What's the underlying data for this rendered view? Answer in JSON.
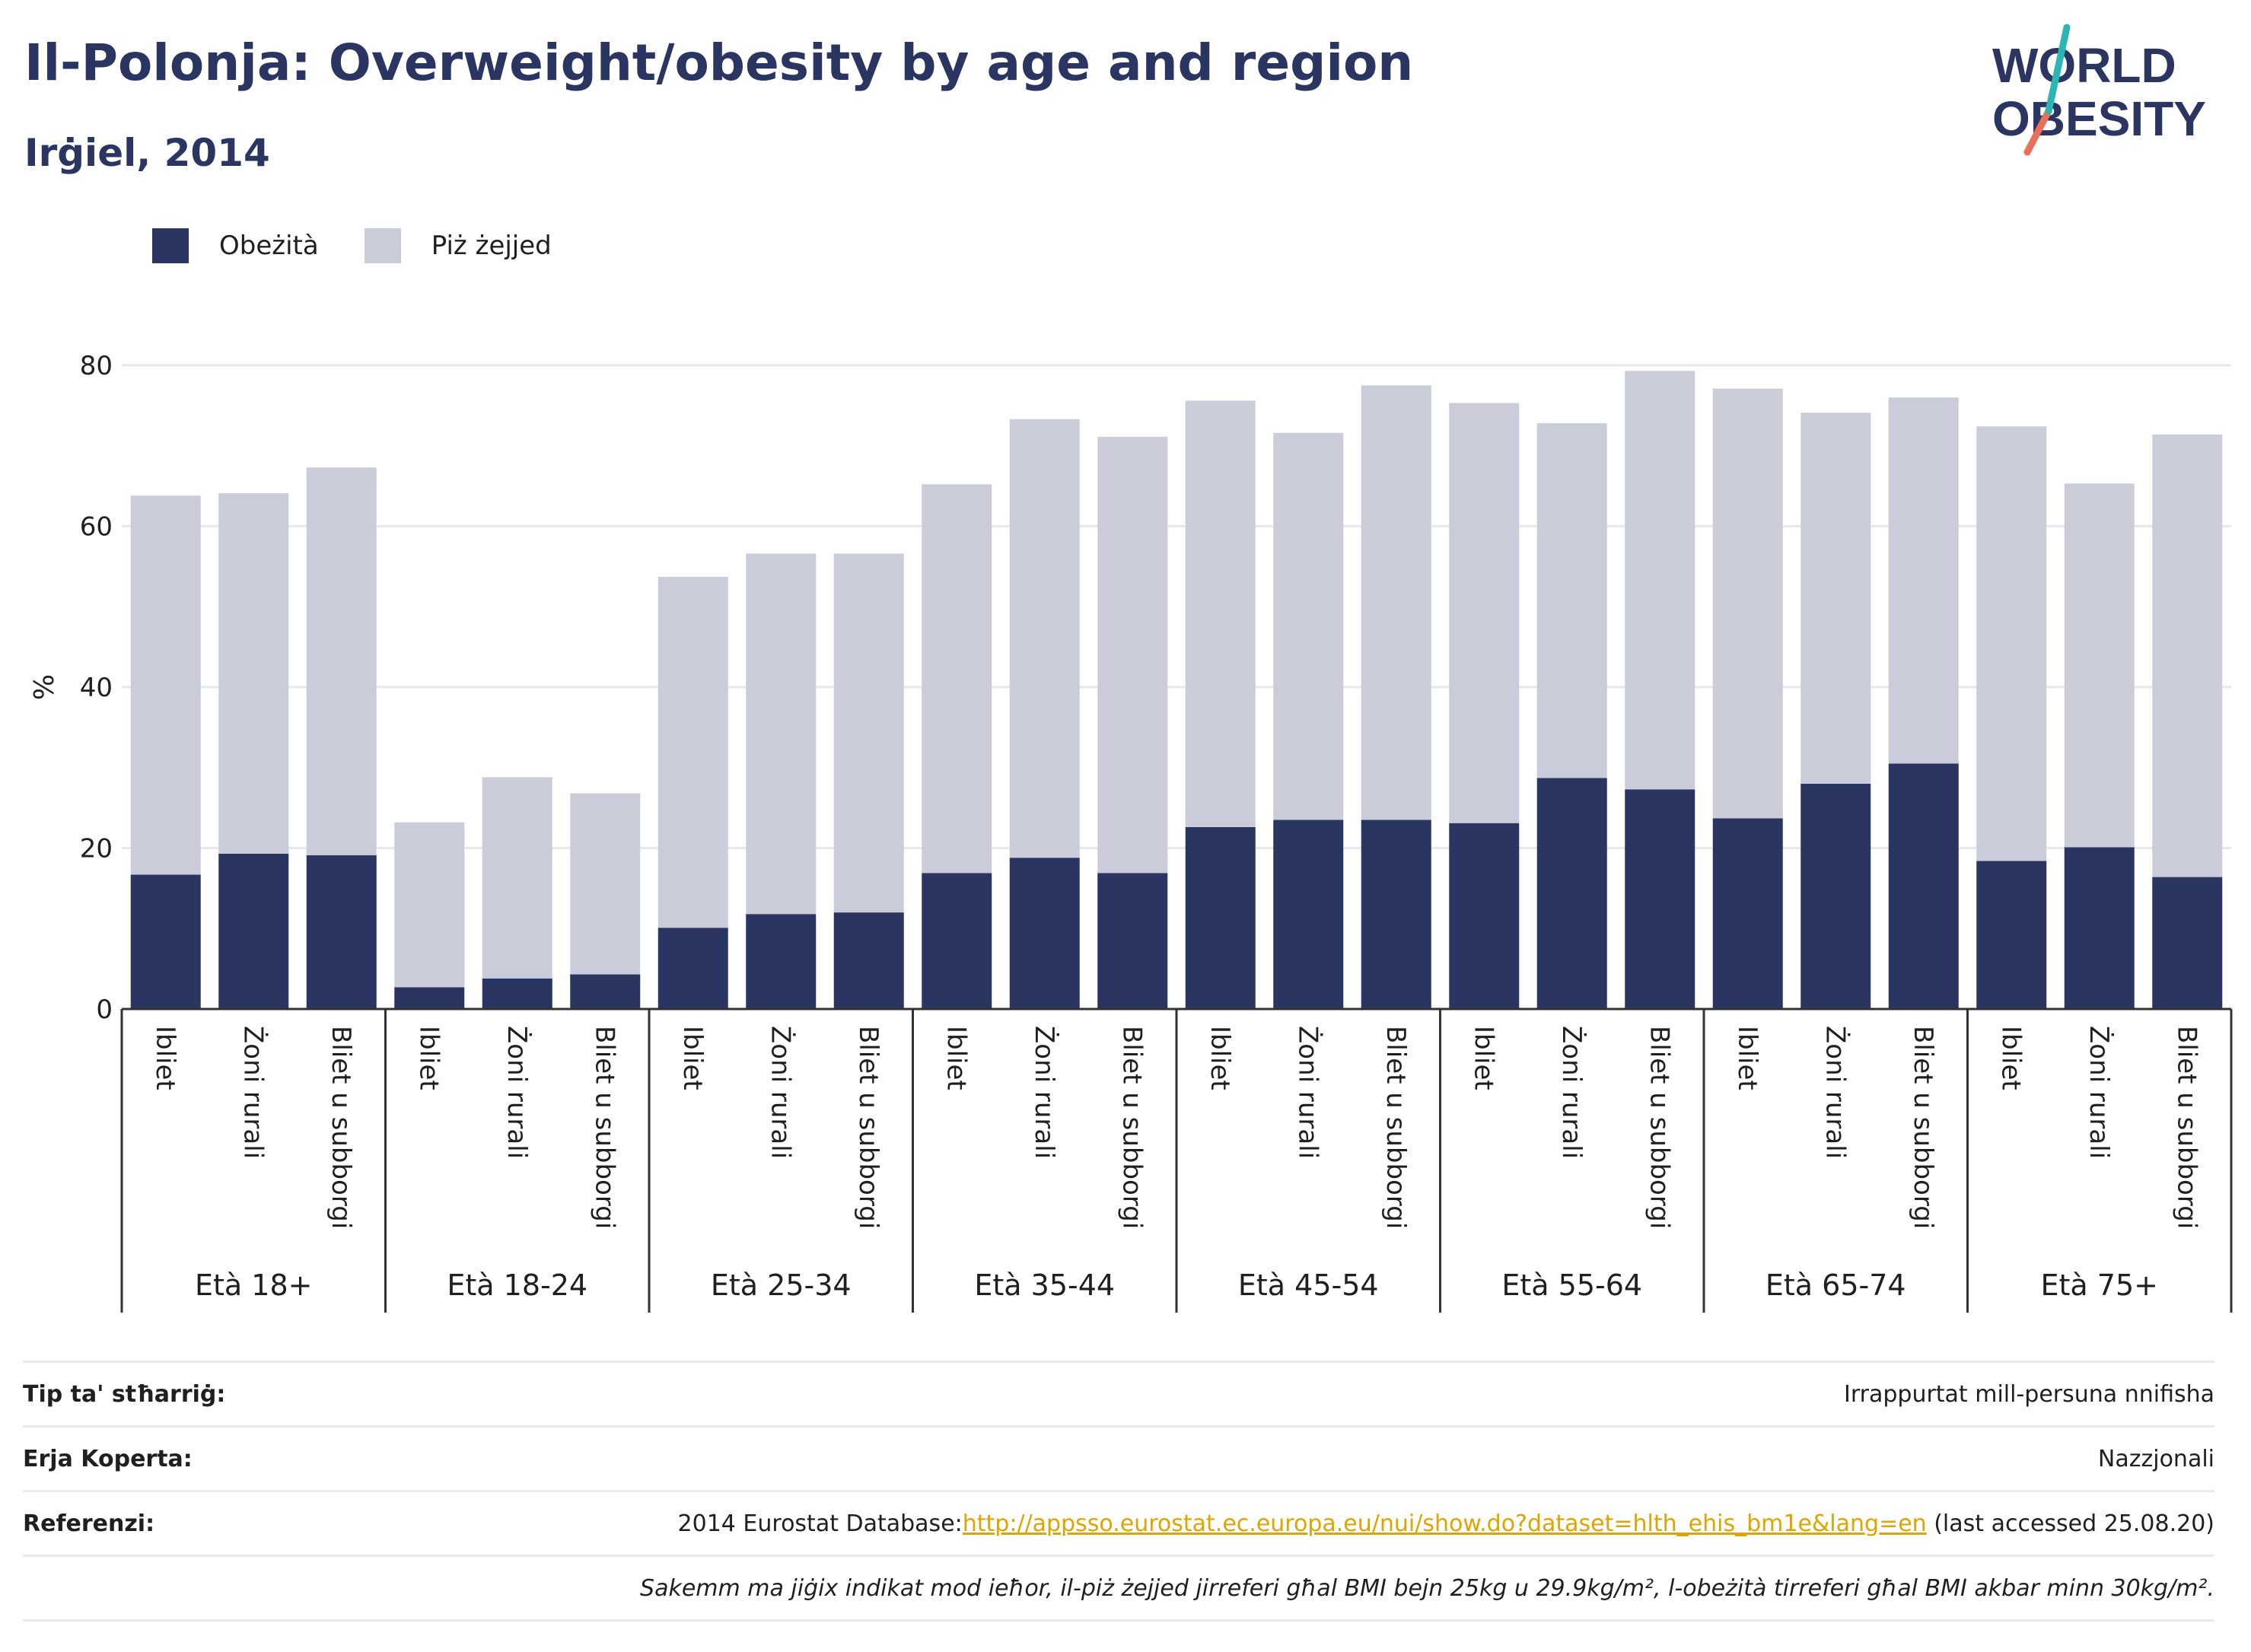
{
  "title": "Il-Polonja: Overweight/obesity by age and region",
  "subtitle": "Irġiel, 2014",
  "logo": {
    "line1": "WORLD",
    "line2": "OBESITY"
  },
  "colors": {
    "obesity": "#2b3562",
    "overweight": "#cacdd9",
    "title": "#2b3562",
    "grid": "#e6e8ee",
    "link": "#e0a400",
    "logo_teal": "#2bb5b5",
    "logo_coral": "#e8705a"
  },
  "legend": [
    {
      "label": "Obeżità",
      "color": "#2b3562"
    },
    {
      "label": "Piż żejjed",
      "color": "#cacdd9"
    }
  ],
  "chart_data": {
    "type": "bar",
    "stacked": true,
    "ylabel": "%",
    "ylim": [
      0,
      80
    ],
    "yticks": [
      0,
      20,
      40,
      60,
      80
    ],
    "grid": true,
    "legend_position": "top-left",
    "groups": [
      "Età 18+",
      "Età 18-24",
      "Età 25-34",
      "Età 35-44",
      "Età 45-54",
      "Età 55-64",
      "Età 65-74",
      "Età 75+"
    ],
    "subcategories": [
      "Ibliet",
      "Żoni rurali",
      "Bliet u subborgi"
    ],
    "series": [
      {
        "name": "Obeżità",
        "values": [
          16.7,
          19.3,
          19.1,
          2.7,
          3.8,
          4.3,
          10.1,
          11.8,
          12.0,
          16.9,
          18.8,
          16.9,
          22.6,
          23.5,
          23.5,
          23.1,
          28.7,
          27.3,
          23.7,
          28.0,
          30.5,
          18.4,
          20.1,
          16.4
        ]
      },
      {
        "name": "Piż żejjed",
        "values": [
          47.1,
          44.8,
          48.2,
          20.5,
          25.0,
          22.5,
          43.6,
          44.8,
          44.6,
          48.3,
          54.5,
          54.2,
          53.0,
          48.1,
          54.0,
          52.2,
          44.1,
          52.0,
          53.4,
          46.1,
          45.5,
          54.0,
          45.2,
          55.0
        ]
      }
    ]
  },
  "footer": {
    "type_label": "Tip ta' stħarriġ:",
    "type_value": "Irrappurtat mill-persuna nnifisha",
    "area_label": "Erja Koperta:",
    "area_value": "Nazzjonali",
    "ref_label": "Referenzi:",
    "ref_prefix": "2014 Eurostat Database:",
    "ref_link": "http://appsso.eurostat.ec.europa.eu/nui/show.do?dataset=hlth_ehis_bm1e&lang=en",
    "ref_suffix": " (last accessed 25.08.20)",
    "note": "Sakemm ma jiġix indikat mod ieħor, il-piż żejjed jirreferi għal BMI bejn 25kg u 29.9kg/m², l-obeżità tirreferi għal BMI akbar minn 30kg/m²."
  }
}
